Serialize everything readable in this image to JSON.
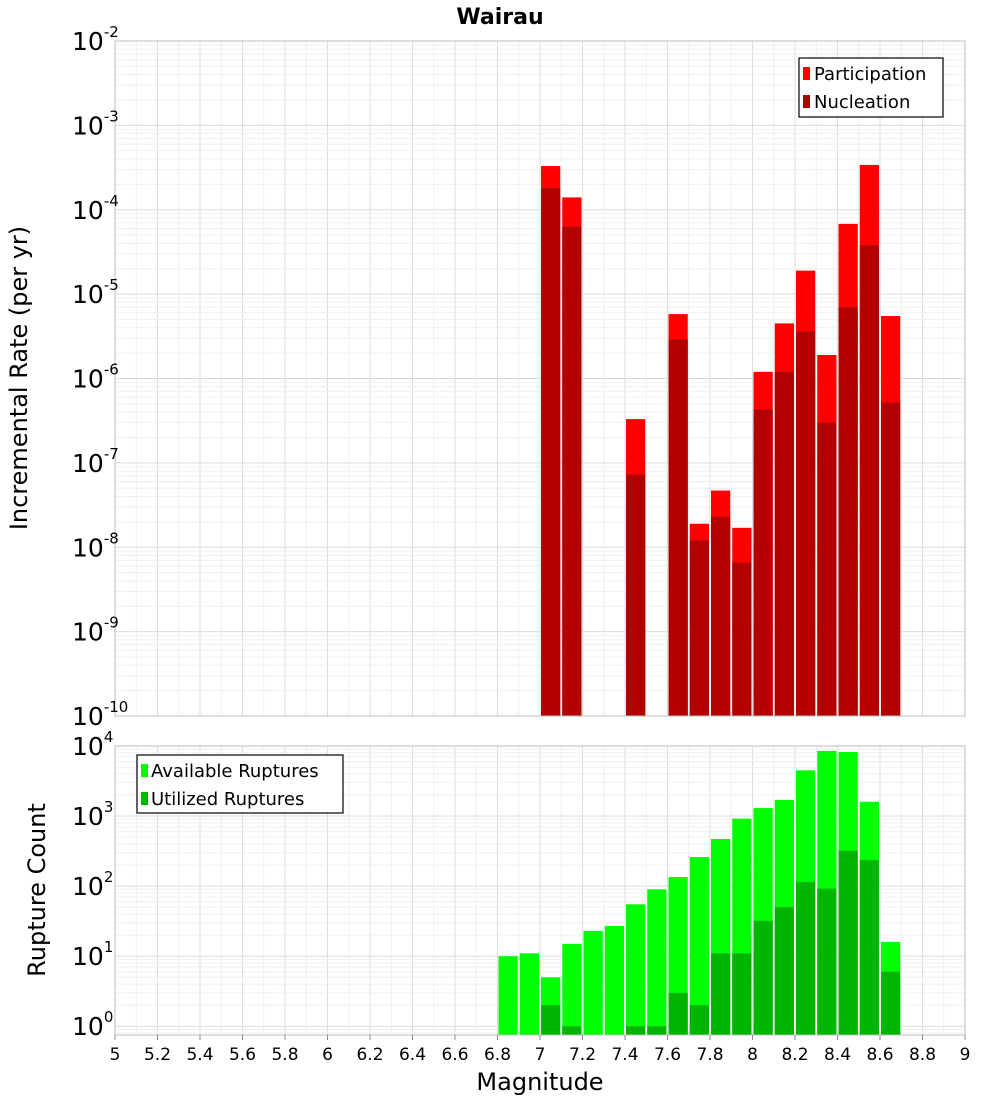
{
  "title": "Wairau",
  "colors": {
    "participation": "#ff0000",
    "nucleation": "#b20000",
    "available": "#00ff00",
    "utilized": "#00b400"
  },
  "chart_data": [
    {
      "type": "bar",
      "scale": "log",
      "ylabel": "Incremental Rate (per yr)",
      "ylim": [
        1e-10,
        0.01
      ],
      "xlim": [
        5,
        9
      ],
      "grid": true,
      "legend_position": "top-right",
      "series": [
        {
          "name": "Participation",
          "color": "#ff0000",
          "x": [
            7.0,
            7.1,
            7.4,
            7.6,
            7.7,
            7.8,
            7.9,
            8.0,
            8.1,
            8.2,
            8.3,
            8.4,
            8.5,
            8.6
          ],
          "values": [
            0.00033,
            0.00014,
            3.3e-07,
            5.8e-06,
            1.9e-08,
            4.7e-08,
            1.7e-08,
            1.2e-06,
            4.5e-06,
            1.9e-05,
            1.9e-06,
            6.8e-05,
            0.00034,
            5.5e-06
          ]
        },
        {
          "name": "Nucleation",
          "color": "#b20000",
          "x": [
            7.0,
            7.1,
            7.4,
            7.6,
            7.7,
            7.8,
            7.9,
            8.0,
            8.1,
            8.2,
            8.3,
            8.4,
            8.5,
            8.6
          ],
          "values": [
            0.00018,
            6.3e-05,
            7.3e-08,
            2.9e-06,
            1.2e-08,
            2.3e-08,
            6.6e-09,
            4.3e-07,
            1.2e-06,
            3.6e-06,
            3e-07,
            7e-06,
            3.8e-05,
            5.2e-07
          ]
        }
      ],
      "ytick_exponents": [
        "-2",
        "-3",
        "-4",
        "-5",
        "-6",
        "-7",
        "-8",
        "-9",
        "-10"
      ]
    },
    {
      "type": "bar",
      "scale": "log",
      "xlabel": "Magnitude",
      "ylabel": "Rupture Count",
      "ylim": [
        0.75,
        10000
      ],
      "xlim": [
        5,
        9
      ],
      "grid": true,
      "legend_position": "top-left",
      "series": [
        {
          "name": "Available Ruptures",
          "color": "#00ff00",
          "x": [
            6.8,
            6.9,
            7.0,
            7.1,
            7.2,
            7.3,
            7.4,
            7.5,
            7.6,
            7.7,
            7.8,
            7.9,
            8.0,
            8.1,
            8.2,
            8.3,
            8.4,
            8.5,
            8.6
          ],
          "values": [
            10,
            11,
            5,
            15,
            23,
            27,
            55,
            90,
            135,
            260,
            470,
            920,
            1300,
            1700,
            4500,
            8500,
            8200,
            1600,
            16
          ]
        },
        {
          "name": "Utilized Ruptures",
          "color": "#00b400",
          "x": [
            7.0,
            7.1,
            7.4,
            7.5,
            7.6,
            7.7,
            7.8,
            7.9,
            8.0,
            8.1,
            8.2,
            8.3,
            8.4,
            8.5,
            8.6
          ],
          "values": [
            2,
            1,
            1,
            1,
            3,
            2,
            11,
            11,
            32,
            50,
            115,
            92,
            320,
            235,
            6
          ]
        }
      ],
      "ytick_exponents": [
        "4",
        "3",
        "2",
        "1",
        "0"
      ],
      "xticks": [
        "5",
        "5.2",
        "5.4",
        "5.6",
        "5.8",
        "6",
        "6.2",
        "6.4",
        "6.6",
        "6.8",
        "7",
        "7.2",
        "7.4",
        "7.6",
        "7.8",
        "8",
        "8.2",
        "8.4",
        "8.6",
        "8.8",
        "9"
      ]
    }
  ]
}
